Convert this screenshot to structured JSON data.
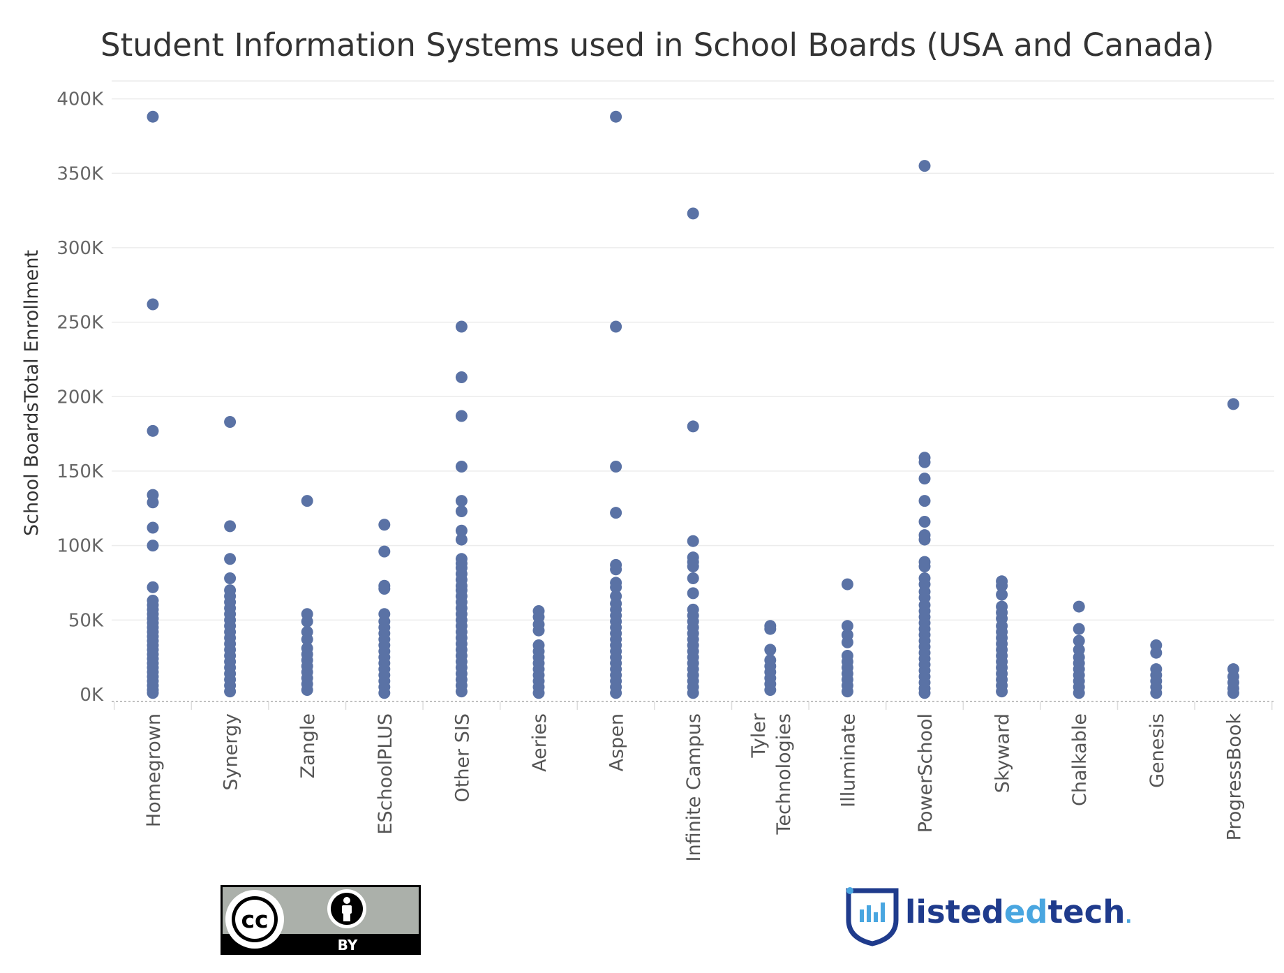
{
  "chart_data": {
    "type": "scatter",
    "title": "Student Information Systems used in School Boards (USA and Canada)",
    "ylabel": "School BoardsTotal Enrollment",
    "xlabel": "",
    "ylim": [
      -8000,
      412000
    ],
    "yticks": [
      0,
      50000,
      100000,
      150000,
      200000,
      250000,
      300000,
      350000,
      400000
    ],
    "ytick_labels": [
      "0K",
      "50K",
      "100K",
      "150K",
      "200K",
      "250K",
      "300K",
      "350K",
      "400K"
    ],
    "grid": true,
    "legend": "none",
    "categories": [
      [
        "Homegrown"
      ],
      [
        "Synergy"
      ],
      [
        "Zangle"
      ],
      [
        "ESchoolPLUS"
      ],
      [
        "Other SIS"
      ],
      [
        "Aeries"
      ],
      [
        "Aspen"
      ],
      [
        "Infinite Campus"
      ],
      [
        "Tyler",
        "Technologies"
      ],
      [
        "Illuminate"
      ],
      [
        "PowerSchool"
      ],
      [
        "Skyward"
      ],
      [
        "Chalkable"
      ],
      [
        "Genesis"
      ],
      [
        "ProgressBook"
      ]
    ],
    "series": [
      {
        "values": [
          [
            0,
            388000
          ],
          [
            0,
            262000
          ],
          [
            0,
            177000
          ],
          [
            0,
            134000
          ],
          [
            0,
            129000
          ],
          [
            0,
            112000
          ],
          [
            0,
            100000
          ],
          [
            0,
            72000
          ],
          [
            0,
            63000
          ],
          [
            0,
            60000
          ],
          [
            0,
            57000
          ],
          [
            0,
            54000
          ],
          [
            0,
            51000
          ],
          [
            0,
            48000
          ],
          [
            0,
            45000
          ],
          [
            0,
            42000
          ],
          [
            0,
            39000
          ],
          [
            0,
            36000
          ],
          [
            0,
            33000
          ],
          [
            0,
            30000
          ],
          [
            0,
            27000
          ],
          [
            0,
            24000
          ],
          [
            0,
            21000
          ],
          [
            0,
            18000
          ],
          [
            0,
            15000
          ],
          [
            0,
            12000
          ],
          [
            0,
            9000
          ],
          [
            0,
            6000
          ],
          [
            0,
            3000
          ],
          [
            0,
            1000
          ],
          [
            1,
            183000
          ],
          [
            1,
            113000
          ],
          [
            1,
            91000
          ],
          [
            1,
            78000
          ],
          [
            1,
            70000
          ],
          [
            1,
            66000
          ],
          [
            1,
            62000
          ],
          [
            1,
            58000
          ],
          [
            1,
            54000
          ],
          [
            1,
            50000
          ],
          [
            1,
            46000
          ],
          [
            1,
            42000
          ],
          [
            1,
            38000
          ],
          [
            1,
            34000
          ],
          [
            1,
            30000
          ],
          [
            1,
            26000
          ],
          [
            1,
            22000
          ],
          [
            1,
            18000
          ],
          [
            1,
            14000
          ],
          [
            1,
            10000
          ],
          [
            1,
            6000
          ],
          [
            1,
            2000
          ],
          [
            2,
            130000
          ],
          [
            2,
            54000
          ],
          [
            2,
            49000
          ],
          [
            2,
            42000
          ],
          [
            2,
            37000
          ],
          [
            2,
            31000
          ],
          [
            2,
            27000
          ],
          [
            2,
            23000
          ],
          [
            2,
            19000
          ],
          [
            2,
            15000
          ],
          [
            2,
            11000
          ],
          [
            2,
            7000
          ],
          [
            2,
            3000
          ],
          [
            3,
            114000
          ],
          [
            3,
            96000
          ],
          [
            3,
            73000
          ],
          [
            3,
            71000
          ],
          [
            3,
            54000
          ],
          [
            3,
            49000
          ],
          [
            3,
            45000
          ],
          [
            3,
            41000
          ],
          [
            3,
            37000
          ],
          [
            3,
            33000
          ],
          [
            3,
            29000
          ],
          [
            3,
            25000
          ],
          [
            3,
            21000
          ],
          [
            3,
            17000
          ],
          [
            3,
            13000
          ],
          [
            3,
            9000
          ],
          [
            3,
            5000
          ],
          [
            3,
            1000
          ],
          [
            4,
            247000
          ],
          [
            4,
            213000
          ],
          [
            4,
            187000
          ],
          [
            4,
            153000
          ],
          [
            4,
            130000
          ],
          [
            4,
            123000
          ],
          [
            4,
            110000
          ],
          [
            4,
            104000
          ],
          [
            4,
            91000
          ],
          [
            4,
            88000
          ],
          [
            4,
            85000
          ],
          [
            4,
            81000
          ],
          [
            4,
            77000
          ],
          [
            4,
            73000
          ],
          [
            4,
            70000
          ],
          [
            4,
            66000
          ],
          [
            4,
            62000
          ],
          [
            4,
            58000
          ],
          [
            4,
            54000
          ],
          [
            4,
            50000
          ],
          [
            4,
            46000
          ],
          [
            4,
            42000
          ],
          [
            4,
            38000
          ],
          [
            4,
            34000
          ],
          [
            4,
            30000
          ],
          [
            4,
            26000
          ],
          [
            4,
            22000
          ],
          [
            4,
            18000
          ],
          [
            4,
            14000
          ],
          [
            4,
            10000
          ],
          [
            4,
            6000
          ],
          [
            4,
            2000
          ],
          [
            5,
            56000
          ],
          [
            5,
            52000
          ],
          [
            5,
            47000
          ],
          [
            5,
            43000
          ],
          [
            5,
            33000
          ],
          [
            5,
            29000
          ],
          [
            5,
            25000
          ],
          [
            5,
            21000
          ],
          [
            5,
            17000
          ],
          [
            5,
            13000
          ],
          [
            5,
            9000
          ],
          [
            5,
            5000
          ],
          [
            5,
            1000
          ],
          [
            6,
            388000
          ],
          [
            6,
            247000
          ],
          [
            6,
            153000
          ],
          [
            6,
            122000
          ],
          [
            6,
            87000
          ],
          [
            6,
            84000
          ],
          [
            6,
            75000
          ],
          [
            6,
            72000
          ],
          [
            6,
            66000
          ],
          [
            6,
            61000
          ],
          [
            6,
            57000
          ],
          [
            6,
            53000
          ],
          [
            6,
            49000
          ],
          [
            6,
            45000
          ],
          [
            6,
            41000
          ],
          [
            6,
            37000
          ],
          [
            6,
            33000
          ],
          [
            6,
            29000
          ],
          [
            6,
            25000
          ],
          [
            6,
            21000
          ],
          [
            6,
            17000
          ],
          [
            6,
            13000
          ],
          [
            6,
            9000
          ],
          [
            6,
            5000
          ],
          [
            6,
            1000
          ],
          [
            7,
            323000
          ],
          [
            7,
            180000
          ],
          [
            7,
            103000
          ],
          [
            7,
            92000
          ],
          [
            7,
            89000
          ],
          [
            7,
            86000
          ],
          [
            7,
            78000
          ],
          [
            7,
            68000
          ],
          [
            7,
            57000
          ],
          [
            7,
            53000
          ],
          [
            7,
            49000
          ],
          [
            7,
            45000
          ],
          [
            7,
            41000
          ],
          [
            7,
            37000
          ],
          [
            7,
            33000
          ],
          [
            7,
            29000
          ],
          [
            7,
            25000
          ],
          [
            7,
            21000
          ],
          [
            7,
            17000
          ],
          [
            7,
            13000
          ],
          [
            7,
            9000
          ],
          [
            7,
            5000
          ],
          [
            7,
            1000
          ],
          [
            8,
            46000
          ],
          [
            8,
            44000
          ],
          [
            8,
            30000
          ],
          [
            8,
            23000
          ],
          [
            8,
            19000
          ],
          [
            8,
            15000
          ],
          [
            8,
            11000
          ],
          [
            8,
            7000
          ],
          [
            8,
            3000
          ],
          [
            9,
            74000
          ],
          [
            9,
            46000
          ],
          [
            9,
            40000
          ],
          [
            9,
            35000
          ],
          [
            9,
            26000
          ],
          [
            9,
            22000
          ],
          [
            9,
            18000
          ],
          [
            9,
            14000
          ],
          [
            9,
            10000
          ],
          [
            9,
            6000
          ],
          [
            9,
            2000
          ],
          [
            10,
            355000
          ],
          [
            10,
            159000
          ],
          [
            10,
            156000
          ],
          [
            10,
            145000
          ],
          [
            10,
            130000
          ],
          [
            10,
            116000
          ],
          [
            10,
            107000
          ],
          [
            10,
            104000
          ],
          [
            10,
            89000
          ],
          [
            10,
            86000
          ],
          [
            10,
            78000
          ],
          [
            10,
            74000
          ],
          [
            10,
            69000
          ],
          [
            10,
            65000
          ],
          [
            10,
            60000
          ],
          [
            10,
            56000
          ],
          [
            10,
            52000
          ],
          [
            10,
            48000
          ],
          [
            10,
            44000
          ],
          [
            10,
            40000
          ],
          [
            10,
            36000
          ],
          [
            10,
            32000
          ],
          [
            10,
            28000
          ],
          [
            10,
            24000
          ],
          [
            10,
            20000
          ],
          [
            10,
            16000
          ],
          [
            10,
            12000
          ],
          [
            10,
            8000
          ],
          [
            10,
            4000
          ],
          [
            10,
            1000
          ],
          [
            11,
            76000
          ],
          [
            11,
            73000
          ],
          [
            11,
            67000
          ],
          [
            11,
            59000
          ],
          [
            11,
            55000
          ],
          [
            11,
            51000
          ],
          [
            11,
            46000
          ],
          [
            11,
            42000
          ],
          [
            11,
            38000
          ],
          [
            11,
            34000
          ],
          [
            11,
            30000
          ],
          [
            11,
            26000
          ],
          [
            11,
            22000
          ],
          [
            11,
            18000
          ],
          [
            11,
            14000
          ],
          [
            11,
            10000
          ],
          [
            11,
            6000
          ],
          [
            11,
            2000
          ],
          [
            12,
            59000
          ],
          [
            12,
            44000
          ],
          [
            12,
            36000
          ],
          [
            12,
            30000
          ],
          [
            12,
            25000
          ],
          [
            12,
            21000
          ],
          [
            12,
            17000
          ],
          [
            12,
            13000
          ],
          [
            12,
            9000
          ],
          [
            12,
            5000
          ],
          [
            12,
            1000
          ],
          [
            13,
            33000
          ],
          [
            13,
            28000
          ],
          [
            13,
            17000
          ],
          [
            13,
            13000
          ],
          [
            13,
            9000
          ],
          [
            13,
            5000
          ],
          [
            13,
            1000
          ],
          [
            14,
            195000
          ],
          [
            14,
            17000
          ],
          [
            14,
            12000
          ],
          [
            14,
            8000
          ],
          [
            14,
            4000
          ],
          [
            14,
            1000
          ]
        ]
      }
    ],
    "dot_color": "#5a72a5"
  },
  "badges": {
    "license": {
      "cc_text": "cc",
      "by_text": "BY"
    },
    "brand": {
      "listed": "listed",
      "ed": "ed",
      "tech": "tech",
      "dot": "."
    }
  },
  "colors": {
    "dots": "#5a72a5",
    "brand_dark": "#1f3b8c",
    "brand_light": "#49a6e0"
  }
}
